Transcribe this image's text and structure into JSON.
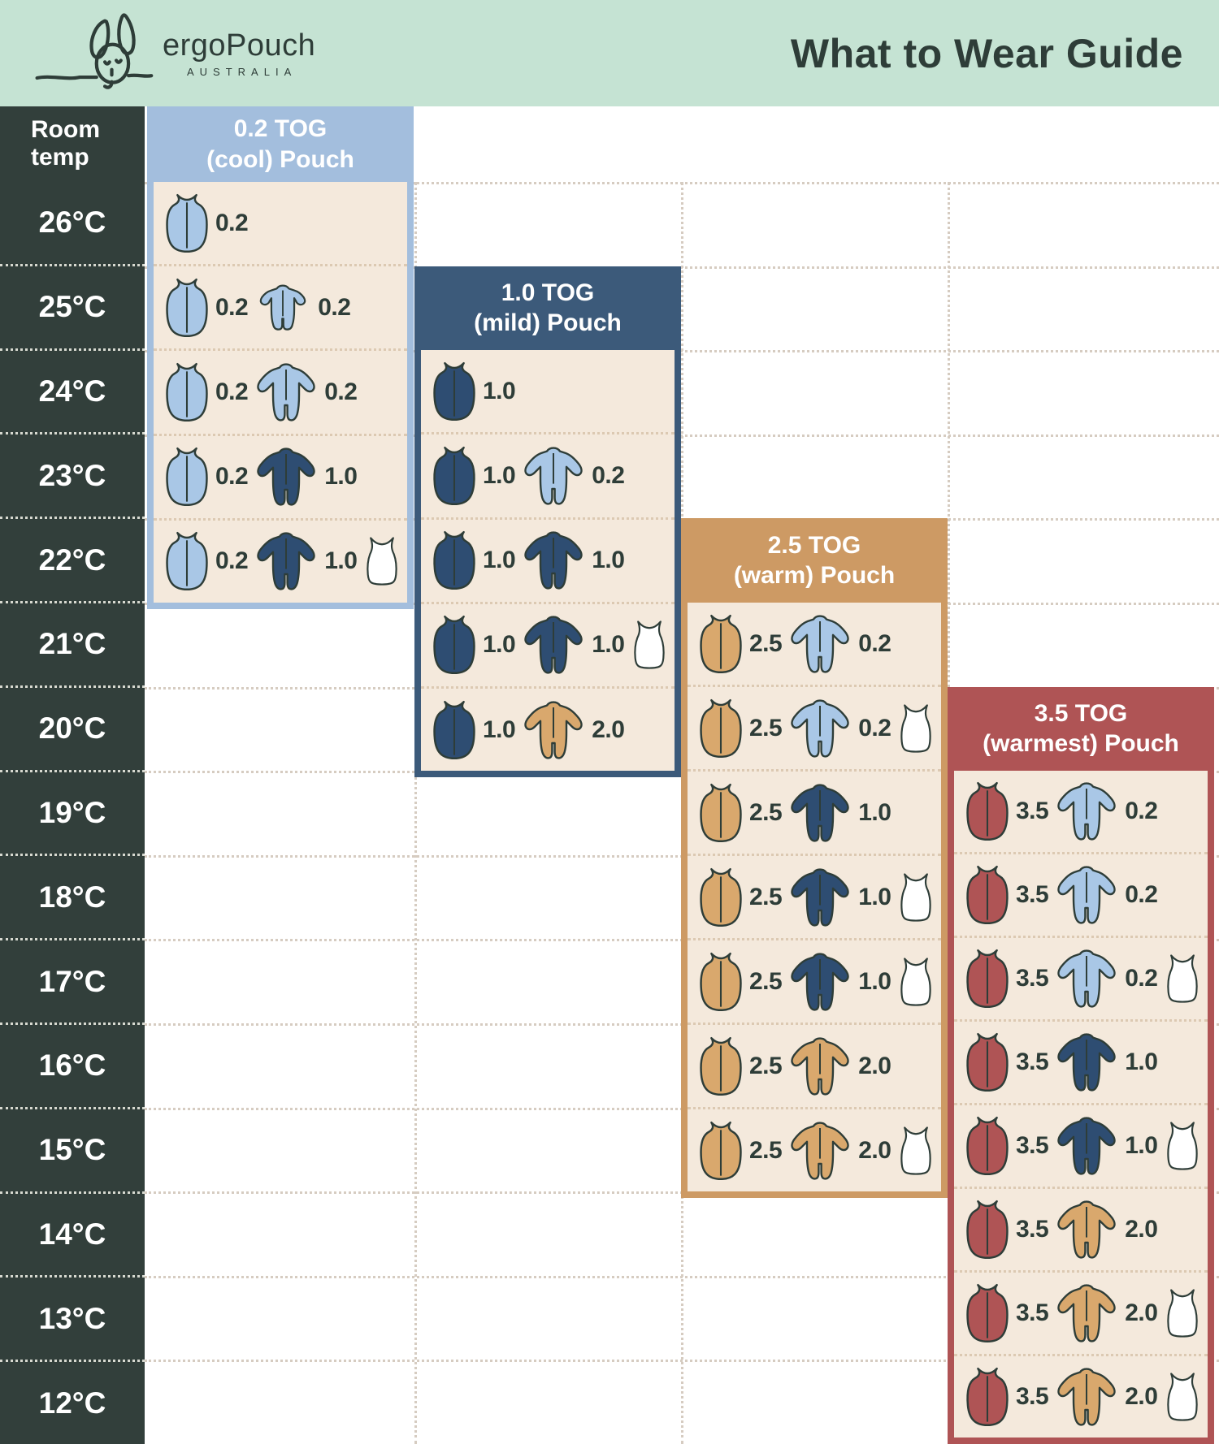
{
  "header": {
    "brand": "ergoPouch",
    "brand_sub": "AUSTRALIA",
    "title": "What to Wear Guide"
  },
  "temp_column": {
    "header": "Room temp",
    "temps": [
      "26°C",
      "25°C",
      "24°C",
      "23°C",
      "22°C",
      "21°C",
      "20°C",
      "19°C",
      "18°C",
      "17°C",
      "16°C",
      "15°C",
      "14°C",
      "13°C",
      "12°C"
    ]
  },
  "colors": {
    "header_bg": "#c5e3d3",
    "ink": "#2e3d38",
    "temp_col_bg": "#323f3b",
    "panel_cream": "#f4e9dc",
    "row_divider": "#dcc9b2",
    "grid_dots": "#d6ccc1",
    "tog02": "#a3bedd",
    "tog10": "#3c5a7a",
    "tog25": "#cd9a64",
    "tog35": "#af5455",
    "garment_lightblue": "#a9c7e6",
    "garment_navy": "#2e4d72",
    "garment_tan": "#d9a86d",
    "garment_red": "#af5455",
    "garment_white": "#ffffff"
  },
  "panels": [
    {
      "id": "tog-0-2",
      "title_line1": "0.2 TOG",
      "title_line2": "(cool) Pouch",
      "color_key": "tog02",
      "rows": [
        {
          "temp": "26°C",
          "items": [
            {
              "icon": "pouch",
              "color": "garment_lightblue",
              "value": "0.2"
            }
          ]
        },
        {
          "temp": "25°C",
          "items": [
            {
              "icon": "pouch",
              "color": "garment_lightblue",
              "value": "0.2"
            },
            {
              "icon": "romper",
              "color": "garment_lightblue",
              "value": "0.2"
            }
          ]
        },
        {
          "temp": "24°C",
          "items": [
            {
              "icon": "pouch",
              "color": "garment_lightblue",
              "value": "0.2"
            },
            {
              "icon": "onesie",
              "color": "garment_lightblue",
              "value": "0.2"
            }
          ]
        },
        {
          "temp": "23°C",
          "items": [
            {
              "icon": "pouch",
              "color": "garment_lightblue",
              "value": "0.2"
            },
            {
              "icon": "onesie",
              "color": "garment_navy",
              "value": "1.0"
            }
          ]
        },
        {
          "temp": "22°C",
          "items": [
            {
              "icon": "pouch",
              "color": "garment_lightblue",
              "value": "0.2"
            },
            {
              "icon": "onesie",
              "color": "garment_navy",
              "value": "1.0"
            },
            {
              "icon": "singlet",
              "color": "garment_white"
            }
          ]
        }
      ]
    },
    {
      "id": "tog-1-0",
      "title_line1": "1.0 TOG",
      "title_line2": "(mild) Pouch",
      "color_key": "tog10",
      "rows": [
        {
          "temp": "24°C",
          "items": [
            {
              "icon": "pouch",
              "color": "garment_navy",
              "value": "1.0"
            }
          ]
        },
        {
          "temp": "23°C",
          "items": [
            {
              "icon": "pouch",
              "color": "garment_navy",
              "value": "1.0"
            },
            {
              "icon": "onesie",
              "color": "garment_lightblue",
              "value": "0.2"
            }
          ]
        },
        {
          "temp": "22°C",
          "items": [
            {
              "icon": "pouch",
              "color": "garment_navy",
              "value": "1.0"
            },
            {
              "icon": "onesie",
              "color": "garment_navy",
              "value": "1.0"
            }
          ]
        },
        {
          "temp": "21°C",
          "items": [
            {
              "icon": "pouch",
              "color": "garment_navy",
              "value": "1.0"
            },
            {
              "icon": "onesie",
              "color": "garment_navy",
              "value": "1.0"
            },
            {
              "icon": "singlet",
              "color": "garment_white"
            }
          ]
        },
        {
          "temp": "20°C",
          "items": [
            {
              "icon": "pouch",
              "color": "garment_navy",
              "value": "1.0"
            },
            {
              "icon": "onesie",
              "color": "garment_tan",
              "value": "2.0"
            }
          ]
        }
      ]
    },
    {
      "id": "tog-2-5",
      "title_line1": "2.5 TOG",
      "title_line2": "(warm) Pouch",
      "color_key": "tog25",
      "rows": [
        {
          "temp": "21°C",
          "items": [
            {
              "icon": "pouch",
              "color": "garment_tan",
              "value": "2.5"
            },
            {
              "icon": "onesie",
              "color": "garment_lightblue",
              "value": "0.2"
            }
          ]
        },
        {
          "temp": "20°C",
          "items": [
            {
              "icon": "pouch",
              "color": "garment_tan",
              "value": "2.5"
            },
            {
              "icon": "onesie",
              "color": "garment_lightblue",
              "value": "0.2"
            },
            {
              "icon": "singlet",
              "color": "garment_white"
            }
          ]
        },
        {
          "temp": "19°C",
          "items": [
            {
              "icon": "pouch",
              "color": "garment_tan",
              "value": "2.5"
            },
            {
              "icon": "onesie",
              "color": "garment_navy",
              "value": "1.0"
            }
          ]
        },
        {
          "temp": "18°C",
          "items": [
            {
              "icon": "pouch",
              "color": "garment_tan",
              "value": "2.5"
            },
            {
              "icon": "onesie",
              "color": "garment_navy",
              "value": "1.0"
            },
            {
              "icon": "singlet",
              "color": "garment_white"
            }
          ]
        },
        {
          "temp": "17°C",
          "items": [
            {
              "icon": "pouch",
              "color": "garment_tan",
              "value": "2.5"
            },
            {
              "icon": "onesie",
              "color": "garment_navy",
              "value": "1.0"
            },
            {
              "icon": "singlet",
              "color": "garment_white"
            }
          ]
        },
        {
          "temp": "16°C",
          "items": [
            {
              "icon": "pouch",
              "color": "garment_tan",
              "value": "2.5"
            },
            {
              "icon": "onesie",
              "color": "garment_tan",
              "value": "2.0"
            }
          ]
        },
        {
          "temp": "15°C",
          "items": [
            {
              "icon": "pouch",
              "color": "garment_tan",
              "value": "2.5"
            },
            {
              "icon": "onesie",
              "color": "garment_tan",
              "value": "2.0"
            },
            {
              "icon": "singlet",
              "color": "garment_white"
            }
          ]
        }
      ]
    },
    {
      "id": "tog-3-5",
      "title_line1": "3.5 TOG",
      "title_line2": "(warmest) Pouch",
      "color_key": "tog35",
      "rows": [
        {
          "temp": "19°C",
          "items": [
            {
              "icon": "pouch",
              "color": "garment_red",
              "value": "3.5"
            },
            {
              "icon": "onesie",
              "color": "garment_lightblue",
              "value": "0.2"
            }
          ]
        },
        {
          "temp": "18°C",
          "items": [
            {
              "icon": "pouch",
              "color": "garment_red",
              "value": "3.5"
            },
            {
              "icon": "onesie",
              "color": "garment_lightblue",
              "value": "0.2"
            }
          ]
        },
        {
          "temp": "17°C",
          "items": [
            {
              "icon": "pouch",
              "color": "garment_red",
              "value": "3.5"
            },
            {
              "icon": "onesie",
              "color": "garment_lightblue",
              "value": "0.2"
            },
            {
              "icon": "singlet",
              "color": "garment_white"
            }
          ]
        },
        {
          "temp": "16°C",
          "items": [
            {
              "icon": "pouch",
              "color": "garment_red",
              "value": "3.5"
            },
            {
              "icon": "onesie",
              "color": "garment_navy",
              "value": "1.0"
            }
          ]
        },
        {
          "temp": "15°C",
          "items": [
            {
              "icon": "pouch",
              "color": "garment_red",
              "value": "3.5"
            },
            {
              "icon": "onesie",
              "color": "garment_navy",
              "value": "1.0"
            },
            {
              "icon": "singlet",
              "color": "garment_white"
            }
          ]
        },
        {
          "temp": "14°C",
          "items": [
            {
              "icon": "pouch",
              "color": "garment_red",
              "value": "3.5"
            },
            {
              "icon": "onesie",
              "color": "garment_tan",
              "value": "2.0"
            }
          ]
        },
        {
          "temp": "13°C",
          "items": [
            {
              "icon": "pouch",
              "color": "garment_red",
              "value": "3.5"
            },
            {
              "icon": "onesie",
              "color": "garment_tan",
              "value": "2.0"
            },
            {
              "icon": "singlet",
              "color": "garment_white"
            }
          ]
        },
        {
          "temp": "12°C",
          "items": [
            {
              "icon": "pouch",
              "color": "garment_red",
              "value": "3.5"
            },
            {
              "icon": "onesie",
              "color": "garment_tan",
              "value": "2.0"
            },
            {
              "icon": "singlet",
              "color": "garment_white"
            }
          ]
        }
      ]
    }
  ],
  "chart_data": {
    "type": "table",
    "title": "What to Wear Guide",
    "x_header": "Room temp (°C)",
    "temps": [
      26,
      25,
      24,
      23,
      22,
      21,
      20,
      19,
      18,
      17,
      16,
      15,
      14,
      13,
      12
    ],
    "series": [
      {
        "name": "0.2 TOG (cool) Pouch",
        "temp_range": [
          26,
          22
        ],
        "recommendations": {
          "26": "0.2 pouch",
          "25": "0.2 pouch + 0.2 romper",
          "24": "0.2 pouch + 0.2 onesie",
          "23": "0.2 pouch + 1.0 onesie",
          "22": "0.2 pouch + 1.0 onesie + singlet"
        }
      },
      {
        "name": "1.0 TOG (mild) Pouch",
        "temp_range": [
          24,
          20
        ],
        "recommendations": {
          "24": "1.0 pouch",
          "23": "1.0 pouch + 0.2 onesie",
          "22": "1.0 pouch + 1.0 onesie",
          "21": "1.0 pouch + 1.0 onesie + singlet",
          "20": "1.0 pouch + 2.0 onesie"
        }
      },
      {
        "name": "2.5 TOG (warm) Pouch",
        "temp_range": [
          21,
          15
        ],
        "recommendations": {
          "21": "2.5 pouch + 0.2 onesie",
          "20": "2.5 pouch + 0.2 onesie + singlet",
          "19": "2.5 pouch + 1.0 onesie",
          "18": "2.5 pouch + 1.0 onesie + singlet",
          "17": "2.5 pouch + 1.0 onesie + singlet",
          "16": "2.5 pouch + 2.0 onesie",
          "15": "2.5 pouch + 2.0 onesie + singlet"
        }
      },
      {
        "name": "3.5 TOG (warmest) Pouch",
        "temp_range": [
          19,
          12
        ],
        "recommendations": {
          "19": "3.5 pouch + 0.2 onesie",
          "18": "3.5 pouch + 0.2 onesie",
          "17": "3.5 pouch + 0.2 onesie + singlet",
          "16": "3.5 pouch + 1.0 onesie",
          "15": "3.5 pouch + 1.0 onesie + singlet",
          "14": "3.5 pouch + 2.0 onesie",
          "13": "3.5 pouch + 2.0 onesie + singlet",
          "12": "3.5 pouch + 2.0 onesie + singlet"
        }
      }
    ]
  }
}
